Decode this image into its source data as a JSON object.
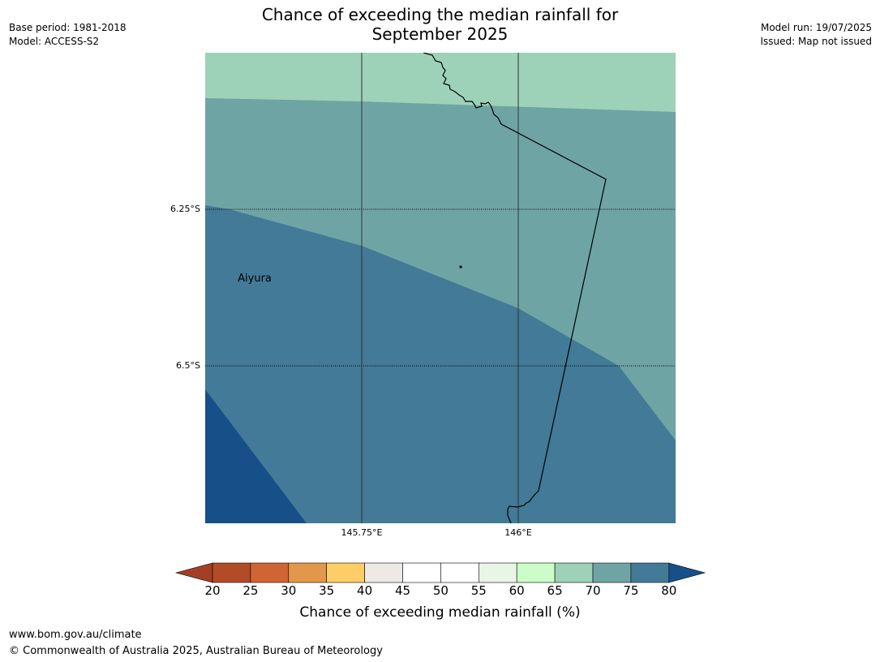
{
  "title_line1": "Chance of exceeding the median rainfall for",
  "title_line2": "September 2025",
  "meta_left": {
    "base_period": "Base period: 1981-2018",
    "model": "Model: ACCESS-S2"
  },
  "meta_right": {
    "model_run": "Model run: 19/07/2025",
    "issued": "Issued: Map not issued"
  },
  "map": {
    "lat_labels": [
      "6.25°S",
      "6.5°S"
    ],
    "lon_labels": [
      "145.75°E",
      "146°E"
    ],
    "place": {
      "name": "Aiyura"
    }
  },
  "colorbar": {
    "ticks": [
      "20",
      "25",
      "30",
      "35",
      "40",
      "45",
      "50",
      "55",
      "60",
      "65",
      "70",
      "75",
      "80"
    ],
    "colors": [
      "#b24c27",
      "#cf6533",
      "#e3974a",
      "#fdce67",
      "#ede9e4",
      "#ffffff",
      "#ffffff",
      "#e9f6e6",
      "#ccfdc9",
      "#9dd2b9",
      "#6fa4a5",
      "#427a97"
    ],
    "under_color": "#a43f26",
    "over_color": "#174f89",
    "label": "Chance of exceeding median rainfall (%)"
  },
  "footer": {
    "url": "www.bom.gov.au/climate",
    "copyright": "© Commonwealth of Australia 2025, Australian Bureau of Meteorology"
  }
}
